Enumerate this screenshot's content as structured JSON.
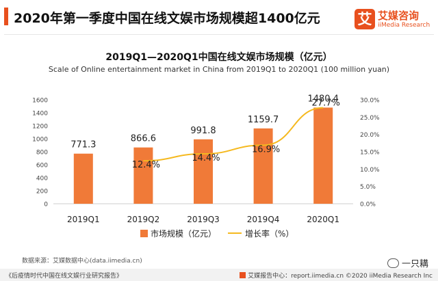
{
  "header": {
    "title": "2020年第一季度中国在线文娱市场规模超1400亿元",
    "accent_color": "#e8501e"
  },
  "logo": {
    "mark": "艾",
    "name": "艾媒咨询",
    "sub": "iiMedia Research"
  },
  "chart_title": "2019Q1—2020Q1中国在线文娱市场规模（亿元）",
  "chart_subtitle": "Scale of Online entertainment market in China from 2019Q1 to 2020Q1  (100  million yuan)",
  "chart_data": {
    "type": "bar",
    "categories": [
      "2019Q1",
      "2019Q2",
      "2019Q3",
      "2019Q4",
      "2020Q1"
    ],
    "series": [
      {
        "name": "市场规模（亿元）",
        "type": "bar",
        "axis": "left",
        "values": [
          771.3,
          866.6,
          991.8,
          1159.7,
          1480.4
        ],
        "color": "#f07a38"
      },
      {
        "name": "增长率（%）",
        "type": "line",
        "axis": "right",
        "values": [
          null,
          12.4,
          14.4,
          16.9,
          27.7
        ],
        "color": "#f5b91f"
      }
    ],
    "y_left": {
      "min": 0,
      "max": 1600,
      "ticks": [
        0,
        200,
        400,
        600,
        800,
        1000,
        1200,
        1400,
        1600
      ]
    },
    "y_right": {
      "min": 0,
      "max": 30,
      "ticks": [
        "0.0%",
        "5.0%",
        "10.0%",
        "15.0%",
        "20.0%",
        "25.0%",
        "30.0%"
      ]
    },
    "bar_labels": [
      "771.3",
      "866.6",
      "991.8",
      "1159.7",
      "1480.4"
    ],
    "line_labels": [
      "",
      "12.4%",
      "14.4%",
      "16.9%",
      "27.7%"
    ],
    "grid": false,
    "legend_position": "bottom"
  },
  "legend": {
    "bar_label": "市场规模（亿元）",
    "line_label": "增长率（%）"
  },
  "source": "数据来源：艾媒数据中心(data.iimedia.cn)",
  "wechat_name": "一只耩",
  "footer": {
    "left": "《后疫情时代中国在线文娱行业研究报告》",
    "right": "艾媒报告中心：report.iimedia.cn  ©2020  iiMedia Research  Inc"
  }
}
